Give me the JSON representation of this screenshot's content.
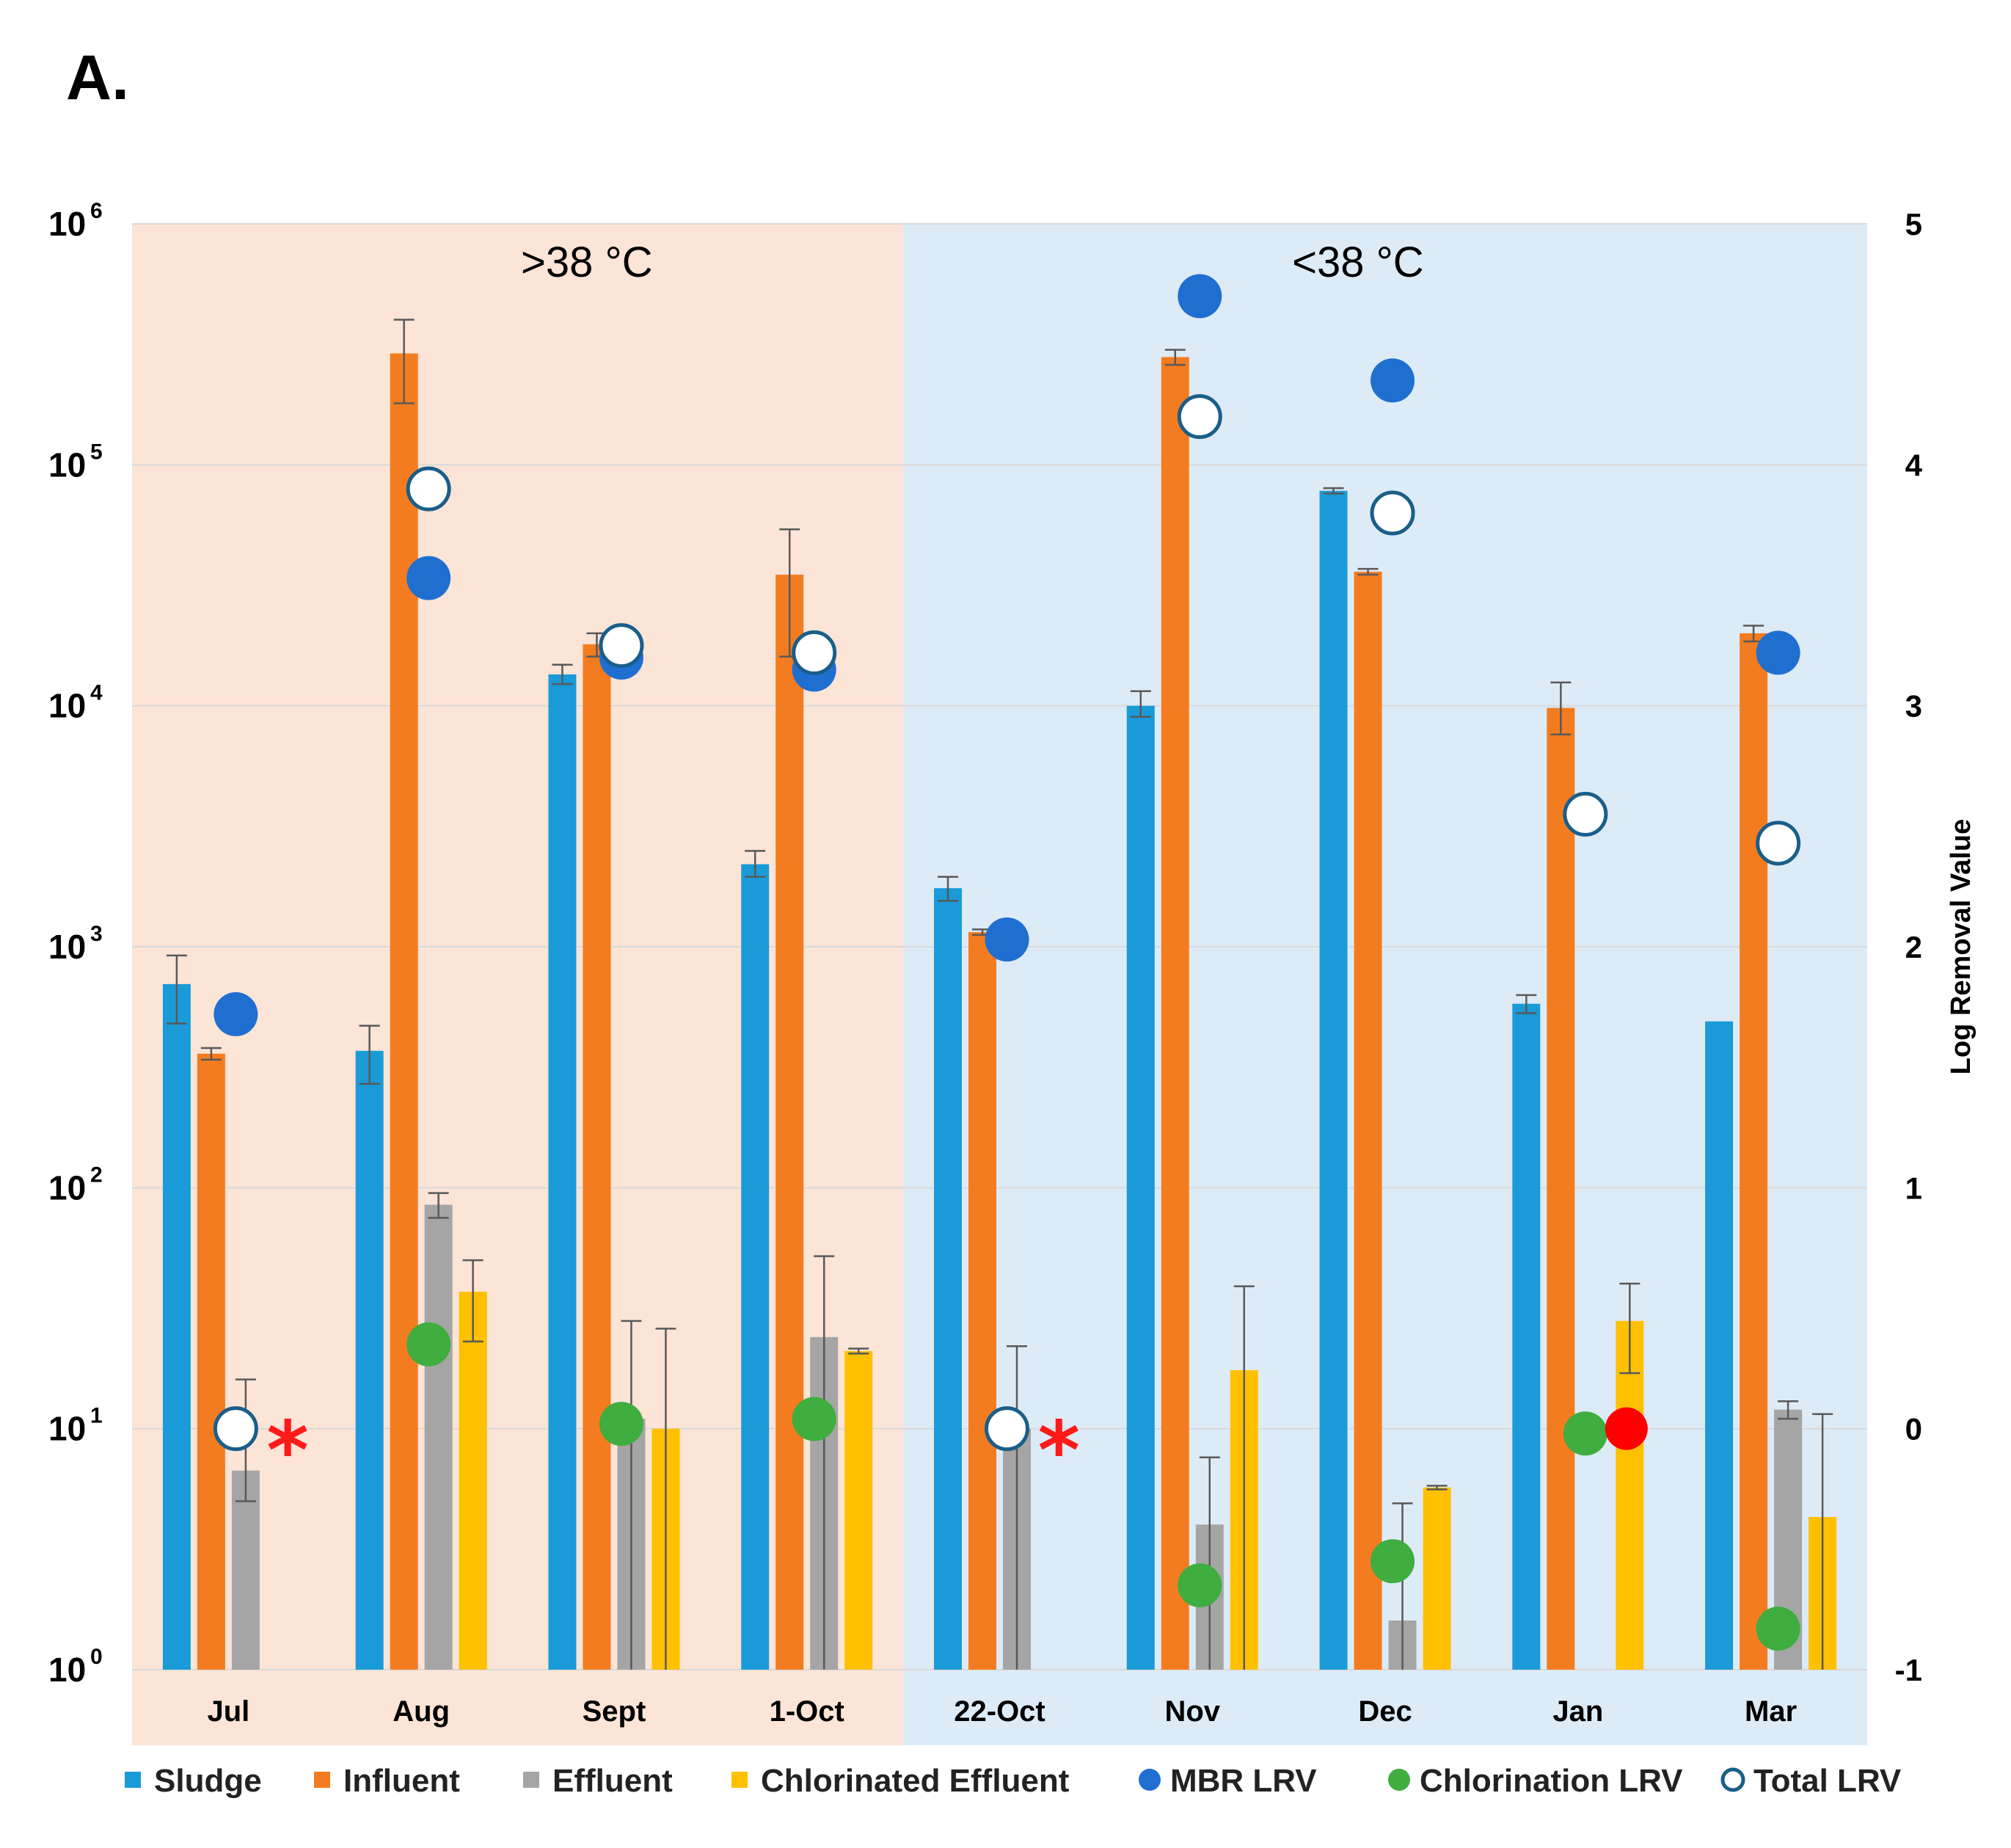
{
  "panel_label": "A.",
  "chart_data": {
    "type": "bar",
    "title": "",
    "xlabel": "",
    "ylabel_left": "",
    "ylabel_right": "Log Removal Value",
    "y_left_scale": "log",
    "y_left_exponent_range": [
      0,
      6
    ],
    "y_left_ticks": [
      {
        "base": "10",
        "exp": "0"
      },
      {
        "base": "10",
        "exp": "1"
      },
      {
        "base": "10",
        "exp": "2"
      },
      {
        "base": "10",
        "exp": "3"
      },
      {
        "base": "10",
        "exp": "4"
      },
      {
        "base": "10",
        "exp": "5"
      },
      {
        "base": "10",
        "exp": "6"
      }
    ],
    "y_right_range": [
      -1,
      5
    ],
    "y_right_ticks": [
      "-1",
      "0",
      "1",
      "2",
      "3",
      "4",
      "5"
    ],
    "categories": [
      "Jul",
      "Aug",
      "Sept",
      "1-Oct",
      "22-Oct",
      "Nov",
      "Dec",
      "Jan",
      "Mar"
    ],
    "regions": [
      {
        "label": ">38 °C",
        "from": "Jul",
        "to": "1-Oct",
        "color": "#fce4d6"
      },
      {
        "label": "<38 °C",
        "from": "22-Oct",
        "to": "Mar",
        "color": "#ddebf7"
      }
    ],
    "bar_series": [
      {
        "name": "Sludge",
        "color": "#1a9bd7",
        "values": [
          700,
          370,
          13500,
          2200,
          1750,
          10000,
          78000,
          580,
          490
        ],
        "err_high": [
          920,
          470,
          14800,
          2500,
          1950,
          11500,
          80000,
          630,
          490
        ],
        "err_low": [
          480,
          270,
          12300,
          1950,
          1550,
          9000,
          76000,
          530,
          490
        ]
      },
      {
        "name": "Influent",
        "color": "#f47c20",
        "values": [
          360,
          290000,
          18000,
          35000,
          1150,
          280000,
          36000,
          9800,
          20000
        ],
        "err_high": [
          380,
          400000,
          20000,
          54000,
          1180,
          300000,
          37000,
          12500,
          21500
        ],
        "err_low": [
          340,
          180000,
          16000,
          16000,
          1120,
          260000,
          35000,
          7600,
          18500
        ],
        "visible": [
          true,
          true,
          true,
          true,
          true,
          true,
          true,
          true,
          true
        ]
      },
      {
        "name": "Effluent",
        "color": "#a5a5a5",
        "values": [
          6.7,
          85,
          11,
          24,
          10,
          4,
          1.6,
          null,
          12
        ],
        "err_high": [
          16,
          95,
          28,
          52,
          22,
          7.6,
          4.9,
          null,
          13
        ],
        "err_low": [
          5,
          75,
          1,
          1,
          1,
          1,
          1,
          null,
          11
        ]
      },
      {
        "name": "Chlorinated Effluent",
        "color": "#ffc000",
        "values": [
          null,
          37,
          10,
          21,
          null,
          17.5,
          5.7,
          28,
          4.3
        ],
        "err_high": [
          null,
          50,
          26,
          21.5,
          null,
          39,
          5.8,
          40,
          11.5
        ],
        "err_low": [
          null,
          23,
          1,
          20.5,
          null,
          1,
          5.6,
          17,
          1
        ]
      }
    ],
    "point_series": [
      {
        "name": "MBR LRV",
        "style": "filled",
        "color": "#1f6fd0",
        "values": [
          1.72,
          3.53,
          3.2,
          3.15,
          2.03,
          4.7,
          4.35,
          null,
          3.22
        ]
      },
      {
        "name": "Chlorination LRV",
        "style": "filled",
        "color": "#3fad3f",
        "values": [
          null,
          0.35,
          0.02,
          0.04,
          null,
          -0.65,
          -0.55,
          -0.02,
          -0.83
        ]
      },
      {
        "name": "Total LRV",
        "style": "open",
        "color": "#1a5e8a",
        "values": [
          0,
          3.9,
          3.25,
          3.22,
          0,
          4.2,
          3.8,
          2.55,
          2.43
        ]
      }
    ],
    "extra_markers": [
      {
        "category": "Jan",
        "lrv": 0.0,
        "color": "#ff0000",
        "shape": "filled-circle"
      }
    ],
    "annotations": [
      {
        "category": "Jul",
        "text": "*",
        "lrv": 0
      },
      {
        "category": "22-Oct",
        "text": "*",
        "lrv": 0
      }
    ],
    "legend": {
      "position": "bottom",
      "entries": [
        "Sludge",
        "Influent",
        "Effluent",
        "Chlorinated Effluent",
        "MBR LRV",
        "Chlorination LRV",
        "Total LRV"
      ]
    },
    "grid": true
  }
}
